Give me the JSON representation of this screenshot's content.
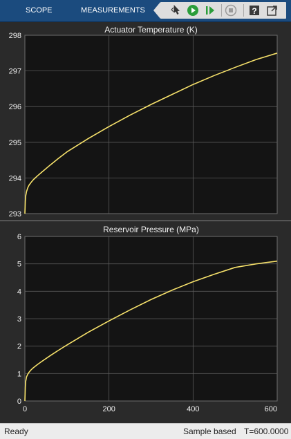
{
  "toolbar": {
    "tabs": [
      "SCOPE",
      "MEASUREMENTS"
    ],
    "icons": [
      "highlight-simulink-block-icon",
      "run-icon",
      "step-forward-icon",
      "stop-icon",
      "help-icon",
      "undock-icon"
    ]
  },
  "status": {
    "left": "Ready",
    "mode": "Sample based",
    "time": "T=600.0000"
  },
  "colors": {
    "toolbar": "#1b4b7e",
    "plot_background": "#141414",
    "figure_background": "#2a2a2a",
    "grid": "#5a5a5a",
    "trace": "#f7e26b",
    "tick_text": "#f0f0f0",
    "status_bar": "#ececec"
  },
  "chart_data": [
    {
      "type": "line",
      "title": "Actuator Temperature (K)",
      "xlabel": "",
      "ylabel": "",
      "xlim": [
        0,
        600
      ],
      "ylim": [
        293,
        298
      ],
      "xticks": [
        0,
        200,
        400,
        600
      ],
      "xtick_labels_shown": false,
      "yticks": [
        293,
        294,
        295,
        296,
        297,
        298
      ],
      "grid": true,
      "legend": "none",
      "series": [
        {
          "color": "#f7e26b",
          "x": [
            0,
            1,
            2,
            4,
            7,
            10,
            15,
            20,
            30,
            40,
            60,
            80,
            100,
            150,
            200,
            250,
            300,
            350,
            400,
            450,
            500,
            550,
            600
          ],
          "y": [
            293.0,
            293.35,
            293.5,
            293.62,
            293.73,
            293.8,
            293.88,
            293.95,
            294.06,
            294.16,
            294.36,
            294.55,
            294.73,
            295.1,
            295.44,
            295.76,
            296.06,
            296.34,
            296.62,
            296.87,
            297.1,
            297.32,
            297.5
          ]
        }
      ]
    },
    {
      "type": "line",
      "title": "Reservoir Pressure (MPa)",
      "xlabel": "",
      "ylabel": "",
      "xlim": [
        0,
        600
      ],
      "ylim": [
        0,
        6
      ],
      "xticks": [
        0,
        200,
        400,
        600
      ],
      "yticks": [
        0,
        1,
        2,
        3,
        4,
        5,
        6
      ],
      "grid": true,
      "legend": "none",
      "series": [
        {
          "color": "#f7e26b",
          "x": [
            0,
            1,
            2,
            4,
            7,
            10,
            15,
            20,
            30,
            40,
            60,
            80,
            100,
            150,
            200,
            250,
            300,
            350,
            400,
            450,
            500,
            550,
            600
          ],
          "y": [
            0.0,
            0.5,
            0.72,
            0.88,
            0.98,
            1.05,
            1.14,
            1.21,
            1.33,
            1.44,
            1.65,
            1.85,
            2.04,
            2.5,
            2.92,
            3.32,
            3.7,
            4.04,
            4.35,
            4.62,
            4.87,
            5.0,
            5.1
          ]
        }
      ]
    }
  ]
}
